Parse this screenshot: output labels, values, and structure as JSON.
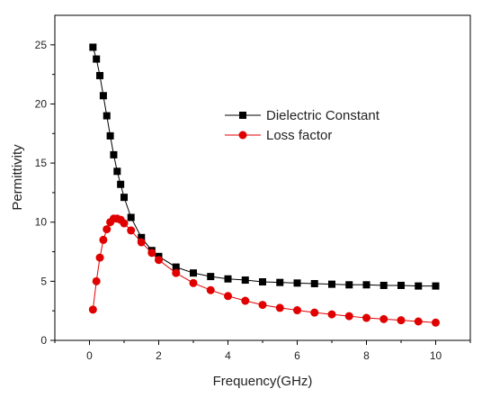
{
  "chart_data": {
    "type": "line",
    "title": "",
    "xlabel": "Frequency(GHz)",
    "ylabel": "Permittivity",
    "xlim": [
      -1,
      11
    ],
    "ylim": [
      0,
      27.5
    ],
    "xticks": [
      0,
      2,
      4,
      6,
      8,
      10
    ],
    "yticks": [
      0,
      5,
      10,
      15,
      20,
      25
    ],
    "xtick_labels": [
      "0",
      "2",
      "4",
      "6",
      "8",
      "10"
    ],
    "ytick_labels": [
      "0",
      "5",
      "10",
      "15",
      "20",
      "25"
    ],
    "grid": false,
    "legend_position": "upper-right-center",
    "series": [
      {
        "name": "Dielectric Constant",
        "color": "#000000",
        "marker": "square",
        "x": [
          0.1,
          0.2,
          0.3,
          0.4,
          0.5,
          0.6,
          0.7,
          0.8,
          0.9,
          1.0,
          1.2,
          1.5,
          1.8,
          2.0,
          2.5,
          3.0,
          3.5,
          4.0,
          4.5,
          5.0,
          5.5,
          6.0,
          6.5,
          7.0,
          7.5,
          8.0,
          8.5,
          9.0,
          9.5,
          10.0
        ],
        "y": [
          24.8,
          23.8,
          22.4,
          20.7,
          19.0,
          17.3,
          15.7,
          14.3,
          13.2,
          12.1,
          10.4,
          8.7,
          7.6,
          7.1,
          6.2,
          5.7,
          5.4,
          5.2,
          5.1,
          4.95,
          4.9,
          4.85,
          4.8,
          4.75,
          4.7,
          4.7,
          4.65,
          4.65,
          4.6,
          4.6
        ]
      },
      {
        "name": "Loss factor",
        "color": "#e00000",
        "marker": "circle",
        "x": [
          0.1,
          0.2,
          0.3,
          0.4,
          0.5,
          0.6,
          0.7,
          0.8,
          0.9,
          1.0,
          1.2,
          1.5,
          1.8,
          2.0,
          2.5,
          3.0,
          3.5,
          4.0,
          4.5,
          5.0,
          5.5,
          6.0,
          6.5,
          7.0,
          7.5,
          8.0,
          8.5,
          9.0,
          9.5,
          10.0
        ],
        "y": [
          2.6,
          5.0,
          7.0,
          8.5,
          9.4,
          10.0,
          10.3,
          10.3,
          10.2,
          9.9,
          9.3,
          8.3,
          7.4,
          6.8,
          5.7,
          4.85,
          4.25,
          3.75,
          3.35,
          3.0,
          2.75,
          2.55,
          2.35,
          2.2,
          2.05,
          1.9,
          1.8,
          1.7,
          1.6,
          1.5
        ]
      }
    ]
  }
}
